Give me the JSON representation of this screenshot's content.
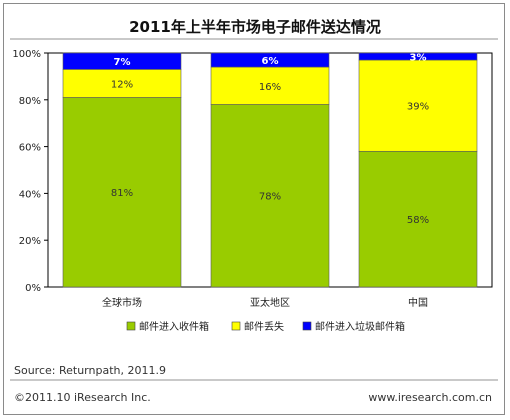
{
  "title": "2011年上半年市场电子邮件送达情况",
  "source": "Source: Returnpath, 2011.9",
  "copyright": "©2011.10 iResearch Inc.",
  "website": "www.iresearch.com.cn",
  "colors": {
    "inbox": "#99cc00",
    "missing": "#ffff00",
    "spam": "#0000ff"
  },
  "chart_data": {
    "type": "bar",
    "stacked": true,
    "percent": true,
    "categories": [
      "全球市场",
      "亚太地区",
      "中国"
    ],
    "series": [
      {
        "name": "邮件进入收件箱",
        "values": [
          81,
          78,
          58
        ],
        "labels": [
          "81%",
          "78%",
          "58%"
        ],
        "color": "#99cc00"
      },
      {
        "name": "邮件丢失",
        "values": [
          12,
          16,
          39
        ],
        "labels": [
          "12%",
          "16%",
          "39%"
        ],
        "color": "#ffff00"
      },
      {
        "name": "邮件进入垃圾邮件箱",
        "values": [
          7,
          6,
          3
        ],
        "labels": [
          "7%",
          "6%",
          "3%"
        ],
        "color": "#0000ff"
      }
    ],
    "yticks": [
      "0%",
      "20%",
      "40%",
      "60%",
      "80%",
      "100%"
    ],
    "ylim": [
      0,
      100
    ],
    "grid": false,
    "legend_position": "bottom"
  }
}
